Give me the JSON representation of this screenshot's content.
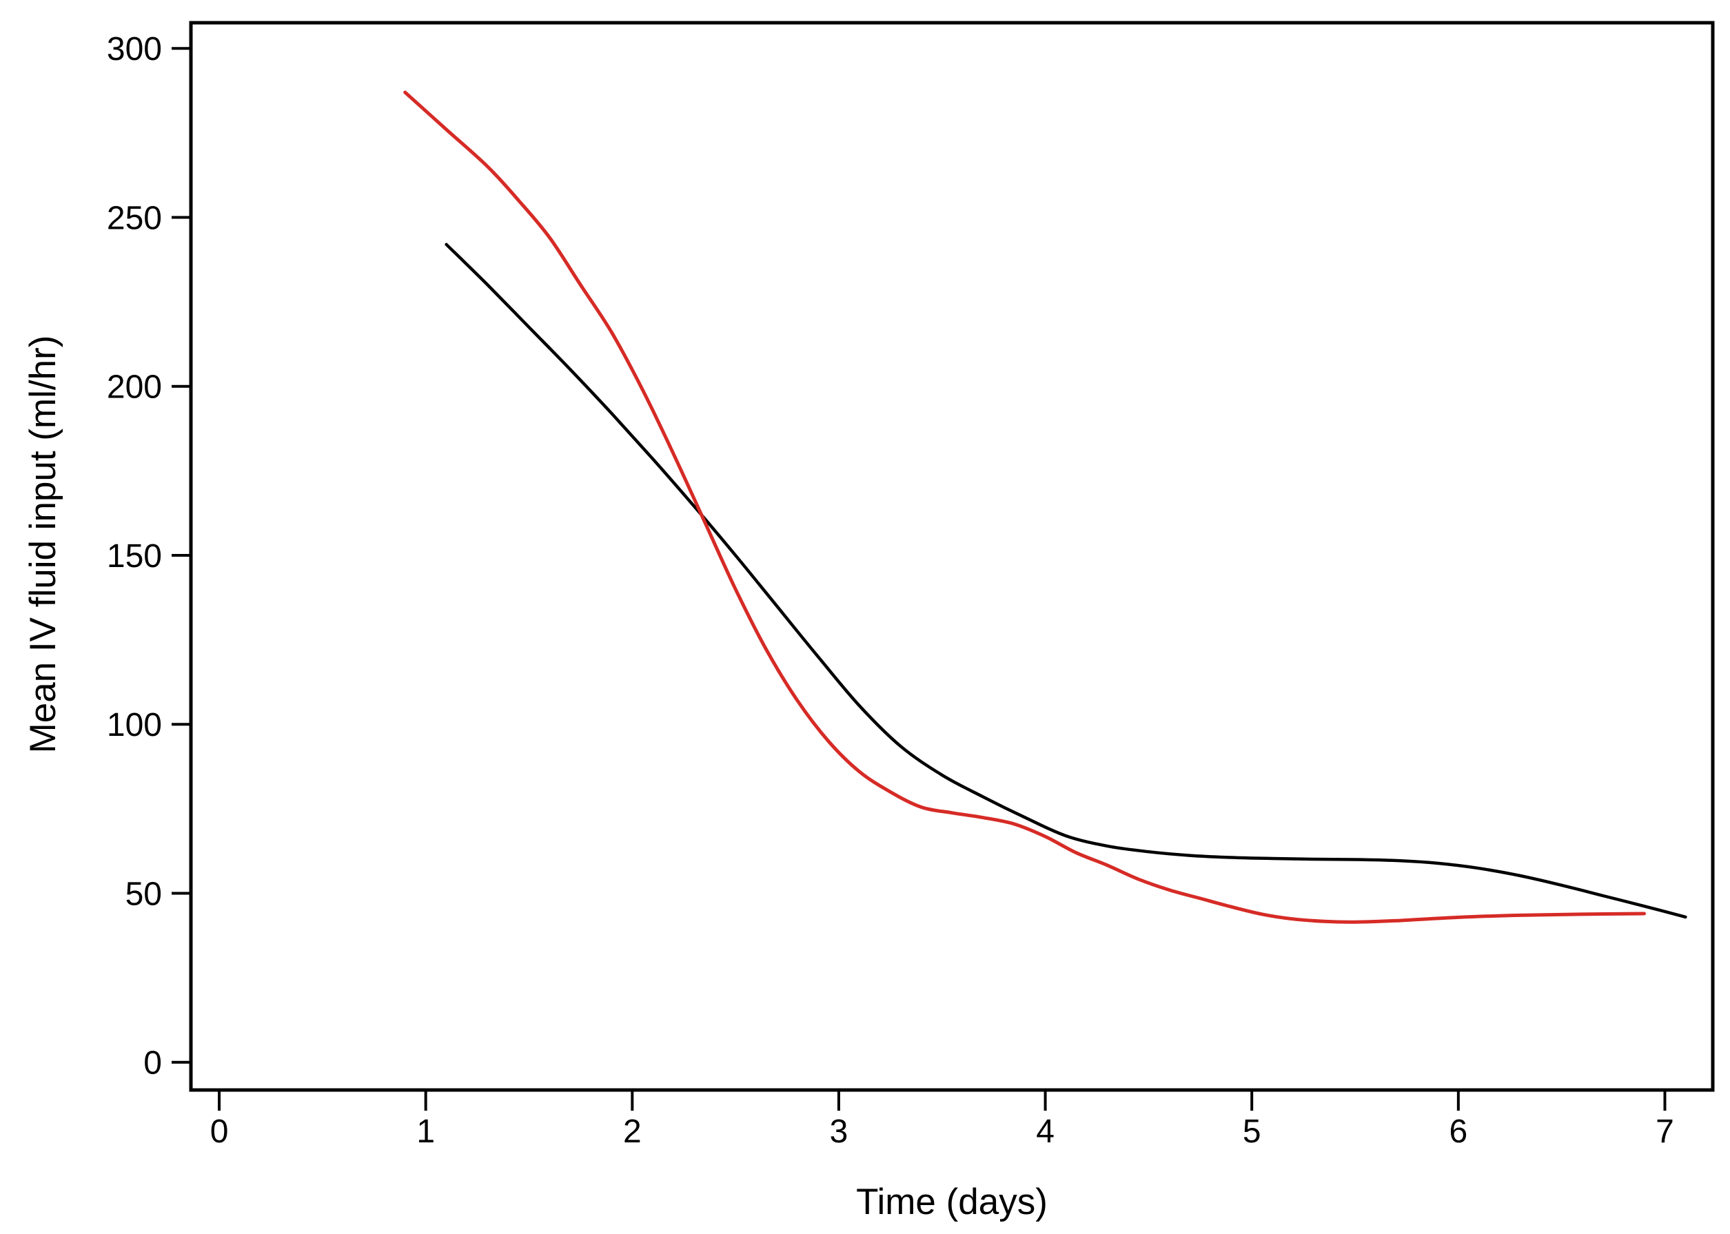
{
  "figure": {
    "background": "#ffffff"
  },
  "chart_data": {
    "type": "line",
    "title": "",
    "xlabel": "Time (days)",
    "ylabel": "Mean IV fluid input (ml/hr)",
    "x_ticks": [
      0,
      1,
      2,
      3,
      4,
      5,
      6,
      7
    ],
    "y_ticks": [
      0,
      50,
      100,
      150,
      200,
      250,
      300
    ],
    "xlim": [
      -0.137,
      7.232
    ],
    "ylim": [
      -8.2,
      307.6
    ],
    "grid": false,
    "legend_position": "none",
    "frame_color": "#000000",
    "tick_label_color": "#000000",
    "series": [
      {
        "name": "black-curve",
        "color": "#000000",
        "stroke_width": 4.5,
        "points": [
          [
            1.1,
            242
          ],
          [
            1.3,
            230
          ],
          [
            1.5,
            217.5
          ],
          [
            1.7,
            205
          ],
          [
            1.9,
            192
          ],
          [
            2.1,
            178.5
          ],
          [
            2.3,
            164.5
          ],
          [
            2.5,
            150
          ],
          [
            2.7,
            135
          ],
          [
            2.9,
            120
          ],
          [
            3.1,
            105.5
          ],
          [
            3.3,
            93.5
          ],
          [
            3.5,
            85
          ],
          [
            3.7,
            78.5
          ],
          [
            3.9,
            72.5
          ],
          [
            4.1,
            67
          ],
          [
            4.3,
            64
          ],
          [
            4.5,
            62.3
          ],
          [
            4.7,
            61.2
          ],
          [
            4.9,
            60.6
          ],
          [
            5.1,
            60.3
          ],
          [
            5.3,
            60.1
          ],
          [
            5.5,
            60
          ],
          [
            5.7,
            59.7
          ],
          [
            5.9,
            58.9
          ],
          [
            6.1,
            57.4
          ],
          [
            6.3,
            55.2
          ],
          [
            6.5,
            52.4
          ],
          [
            6.7,
            49.3
          ],
          [
            6.9,
            46.2
          ],
          [
            7.1,
            43
          ]
        ]
      },
      {
        "name": "red-curve",
        "color": "#d62b26",
        "stroke_width": 5,
        "points": [
          [
            0.9,
            287
          ],
          [
            1.1,
            276
          ],
          [
            1.3,
            265
          ],
          [
            1.45,
            255
          ],
          [
            1.6,
            244
          ],
          [
            1.75,
            230
          ],
          [
            1.9,
            216
          ],
          [
            2.05,
            199
          ],
          [
            2.2,
            180
          ],
          [
            2.35,
            160
          ],
          [
            2.5,
            140
          ],
          [
            2.65,
            122
          ],
          [
            2.8,
            107
          ],
          [
            2.95,
            95
          ],
          [
            3.1,
            86
          ],
          [
            3.25,
            80
          ],
          [
            3.4,
            75.5
          ],
          [
            3.55,
            73.8
          ],
          [
            3.7,
            72.4
          ],
          [
            3.85,
            70.5
          ],
          [
            4.0,
            66.8
          ],
          [
            4.15,
            62
          ],
          [
            4.3,
            58.3
          ],
          [
            4.45,
            54.2
          ],
          [
            4.6,
            51
          ],
          [
            4.75,
            48.5
          ],
          [
            4.9,
            46
          ],
          [
            5.05,
            43.8
          ],
          [
            5.2,
            42.4
          ],
          [
            5.35,
            41.7
          ],
          [
            5.5,
            41.5
          ],
          [
            5.7,
            41.9
          ],
          [
            6.0,
            42.9
          ],
          [
            6.3,
            43.5
          ],
          [
            6.6,
            43.8
          ],
          [
            6.9,
            44
          ]
        ]
      }
    ]
  }
}
